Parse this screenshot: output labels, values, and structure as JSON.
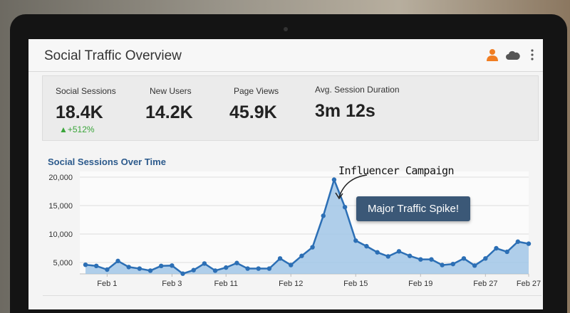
{
  "header": {
    "title": "Social Traffic Overview",
    "icons": [
      "user-icon",
      "cloud-icon",
      "more-vertical-icon"
    ],
    "user_icon_color": "#f07d22"
  },
  "kpis": [
    {
      "label": "Social Sessions",
      "value": "18.4K",
      "delta": "▲+512%"
    },
    {
      "label": "New Users",
      "value": "14.2K"
    },
    {
      "label": "Page Views",
      "value": "45.9K"
    },
    {
      "label": "Avg. Session Duration",
      "value": "3m 12s"
    }
  ],
  "colors": {
    "accent": "#2c6fb5",
    "fill": "#9cc3e6",
    "delta": "#3aa53a",
    "tooltip": "#3b5877"
  },
  "chart_data": {
    "type": "area",
    "title": "Social Sessions Over Time",
    "xlabel": "",
    "ylabel": "",
    "ylim": [
      3000,
      20500
    ],
    "yticks": [
      5000,
      10000,
      15000,
      20000
    ],
    "ytick_labels": [
      "5,000",
      "10,000",
      "15,000",
      "20,000"
    ],
    "xticks": [
      {
        "index": 2,
        "label": "Feb 1"
      },
      {
        "index": 8,
        "label": "Feb 3"
      },
      {
        "index": 13,
        "label": "Feb 11"
      },
      {
        "index": 19,
        "label": "Feb 12"
      },
      {
        "index": 25,
        "label": "Feb 15"
      },
      {
        "index": 31,
        "label": "Feb 19"
      },
      {
        "index": 37,
        "label": "Feb 27"
      },
      {
        "index": 41,
        "label": "Feb 27"
      }
    ],
    "grid": true,
    "values": [
      4600,
      4400,
      3750,
      5270,
      4200,
      3930,
      3570,
      4400,
      4460,
      3040,
      3660,
      4820,
      3570,
      4110,
      4910,
      3930,
      3930,
      3930,
      5710,
      4550,
      6160,
      7680,
      13210,
      19550,
      14730,
      8840,
      7860,
      6790,
      6070,
      6960,
      6160,
      5540,
      5540,
      4550,
      4730,
      5710,
      4460,
      5710,
      7500,
      6880,
      8660,
      8300
    ],
    "annotations": [
      {
        "text": "Influencer Campaign",
        "index": 23
      },
      {
        "text": "Major Traffic Spike!",
        "index": 24
      }
    ]
  }
}
